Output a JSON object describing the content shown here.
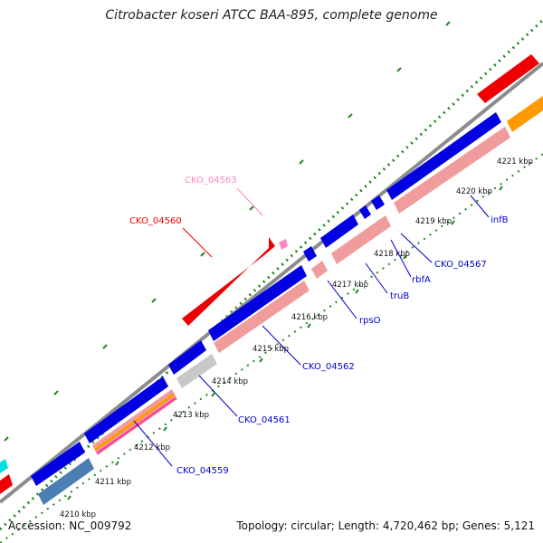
{
  "title": "Citrobacter koseri ATCC BAA-895, complete genome",
  "footer": {
    "accession": "Accession: NC_009792",
    "stats": "Topology: circular; Length: 4,720,462 bp; Genes: 5,121"
  },
  "colors": {
    "blue_cds": "#0000e0",
    "red_gene": "#ee0000",
    "salmon": "#f19c9c",
    "gray_backbone": "#8c8c8c",
    "silver": "#c8c8c8",
    "steel": "#4d7eb3",
    "orange": "#ff9900",
    "pink": "#ff33aa",
    "green_ticks": "#228822",
    "cyan": "#00e0e0",
    "label_blue": "#0000cc",
    "label_red": "#ee0000",
    "label_pink": "#ff88c0"
  },
  "kbp_ticks": [
    "4210 kbp",
    "4211 kbp",
    "4212 kbp",
    "4213 kbp",
    "4214 kbp",
    "4215 kbp",
    "4216 kbp",
    "4217 kbp",
    "4218 kbp",
    "4219 kbp",
    "4220 kbp",
    "4221 kbp"
  ],
  "gene_labels": [
    "CKO_04559",
    "CKO_04561",
    "CKO_04562",
    "rpsO",
    "truB",
    "rbfA",
    "CKO_04567",
    "infB",
    "CKO_04560",
    "CKO_04563"
  ]
}
